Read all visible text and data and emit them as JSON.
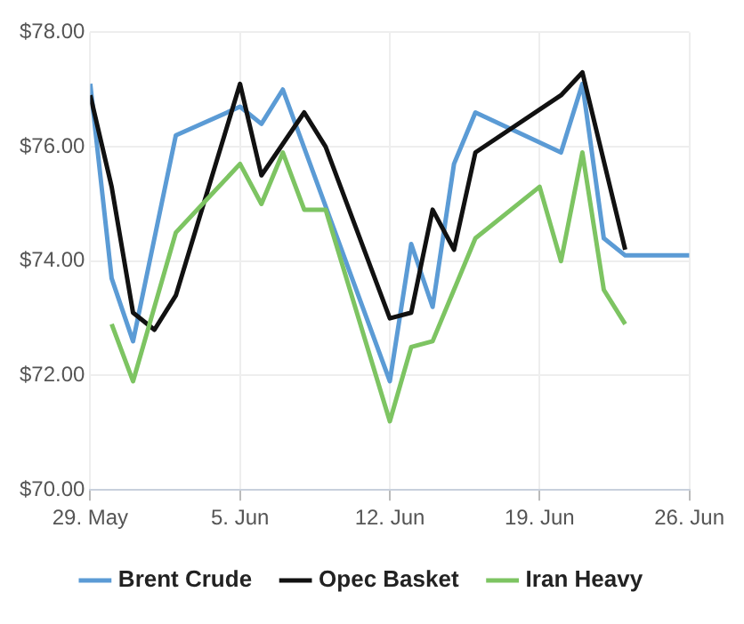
{
  "chart_data": {
    "type": "line",
    "xlim": [
      "--05-29",
      "--06-26"
    ],
    "xticks": [
      {
        "value": "--05-29",
        "label": "29. May"
      },
      {
        "value": "--06-05",
        "label": "5. Jun"
      },
      {
        "value": "--06-12",
        "label": "12. Jun"
      },
      {
        "value": "--06-19",
        "label": "19. Jun"
      },
      {
        "value": "--06-26",
        "label": "26. Jun"
      }
    ],
    "ylim": [
      70,
      78
    ],
    "yticks": [
      {
        "value": 70,
        "label": "$70.00"
      },
      {
        "value": 72,
        "label": "$72.00"
      },
      {
        "value": 74,
        "label": "$74.00"
      },
      {
        "value": 76,
        "label": "$76.00"
      },
      {
        "value": 78,
        "label": "$78.00"
      }
    ],
    "grid": true,
    "legend": "bottom",
    "marker": "none",
    "line_style": "solid",
    "series": [
      {
        "name": "Brent Crude",
        "color": "#5b9bd5",
        "x": [
          "--05-29",
          "--05-30",
          "--05-31",
          "--06-02",
          "--06-05",
          "--06-06",
          "--06-07",
          "--06-12",
          "--06-13",
          "--06-14",
          "--06-15",
          "--06-16",
          "--06-20",
          "--06-21",
          "--06-22",
          "--06-23",
          "--06-26"
        ],
        "values": [
          77.1,
          73.7,
          72.6,
          76.2,
          76.7,
          76.4,
          77.0,
          71.9,
          74.3,
          73.2,
          75.7,
          76.6,
          75.9,
          77.1,
          74.4,
          74.1,
          74.1
        ]
      },
      {
        "name": "Opec Basket",
        "color": "#111111",
        "x": [
          "--05-29",
          "--05-30",
          "--05-31",
          "--06-01",
          "--06-02",
          "--06-05",
          "--06-06",
          "--06-08",
          "--06-09",
          "--06-12",
          "--06-13",
          "--06-14",
          "--06-15",
          "--06-16",
          "--06-20",
          "--06-21",
          "--06-23"
        ],
        "values": [
          76.9,
          75.3,
          73.1,
          72.8,
          73.4,
          77.1,
          75.5,
          76.6,
          76.0,
          73.0,
          73.1,
          74.9,
          74.2,
          75.9,
          76.9,
          77.3,
          74.2
        ]
      },
      {
        "name": "Iran Heavy",
        "color": "#7dc462",
        "x": [
          "--05-30",
          "--05-31",
          "--06-02",
          "--06-05",
          "--06-06",
          "--06-07",
          "--06-08",
          "--06-09",
          "--06-12",
          "--06-13",
          "--06-14",
          "--06-16",
          "--06-19",
          "--06-20",
          "--06-21",
          "--06-22",
          "--06-23"
        ],
        "values": [
          72.9,
          71.9,
          74.5,
          75.7,
          75.0,
          75.9,
          74.9,
          74.9,
          71.2,
          72.5,
          72.6,
          74.4,
          75.3,
          74.0,
          75.9,
          73.5,
          72.9
        ]
      }
    ]
  }
}
